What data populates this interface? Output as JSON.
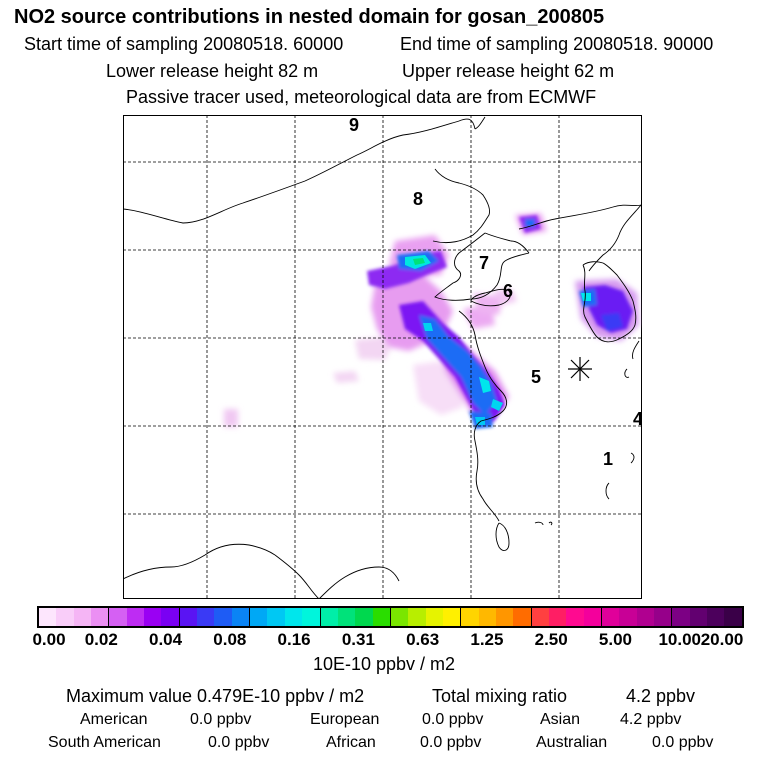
{
  "header": {
    "title": "NO2 source contributions in nested domain for gosan_200805",
    "start_label": "Start time of sampling 20080518. 60000",
    "end_label": "End time of sampling 20080518. 90000",
    "lower_label": "Lower release height   82 m",
    "upper_label": "Upper release height   62 m",
    "tracer_note": "Passive tracer used, meteorological data are from ECMWF"
  },
  "map": {
    "trajectory_points": [
      "9",
      "8",
      "7",
      "6",
      "5",
      "4",
      "1"
    ],
    "receptor_marker": "asterisk-icon"
  },
  "legend": {
    "ticks": [
      "0.00",
      "0.02",
      "0.04",
      "0.08",
      "0.16",
      "0.31",
      "0.63",
      "1.25",
      "2.50",
      "5.00",
      "10.00",
      "20.00"
    ],
    "colors": [
      "#fde6fd",
      "#f9cdf9",
      "#f5b5f5",
      "#eb8ff3",
      "#d560f3",
      "#be2cf3",
      "#9a00f3",
      "#7a00f3",
      "#5a14f3",
      "#3a3af5",
      "#1e5cf5",
      "#0a84f5",
      "#00a8f5",
      "#00c8f3",
      "#00e6ec",
      "#00f5dc",
      "#00eea8",
      "#00e27a",
      "#00d84e",
      "#2add00",
      "#7ae600",
      "#b8ee00",
      "#e6f300",
      "#fff000",
      "#ffd400",
      "#ffb800",
      "#ff9600",
      "#ff6c00",
      "#ff4040",
      "#ff1e64",
      "#ff0a90",
      "#f4009c",
      "#e0009a",
      "#c80096",
      "#b00090",
      "#96008a",
      "#7c0084",
      "#620070",
      "#4c005c",
      "#3a0048"
    ],
    "units": "10E-10 ppbv / m2"
  },
  "stats": {
    "max_label": "Maximum value  0.479E-10 ppbv / m2",
    "total_label": "Total mixing ratio",
    "total_value": "4.2 ppbv",
    "american_label": "American",
    "american_value": "0.0 ppbv",
    "european_label": "European",
    "european_value": "0.0 ppbv",
    "asian_label": "Asian",
    "asian_value": "4.2 ppbv",
    "south_american_label": "South American",
    "south_american_value": "0.0 ppbv",
    "african_label": "African",
    "african_value": "0.0 ppbv",
    "australian_label": "Australian",
    "australian_value": "0.0 ppbv"
  }
}
